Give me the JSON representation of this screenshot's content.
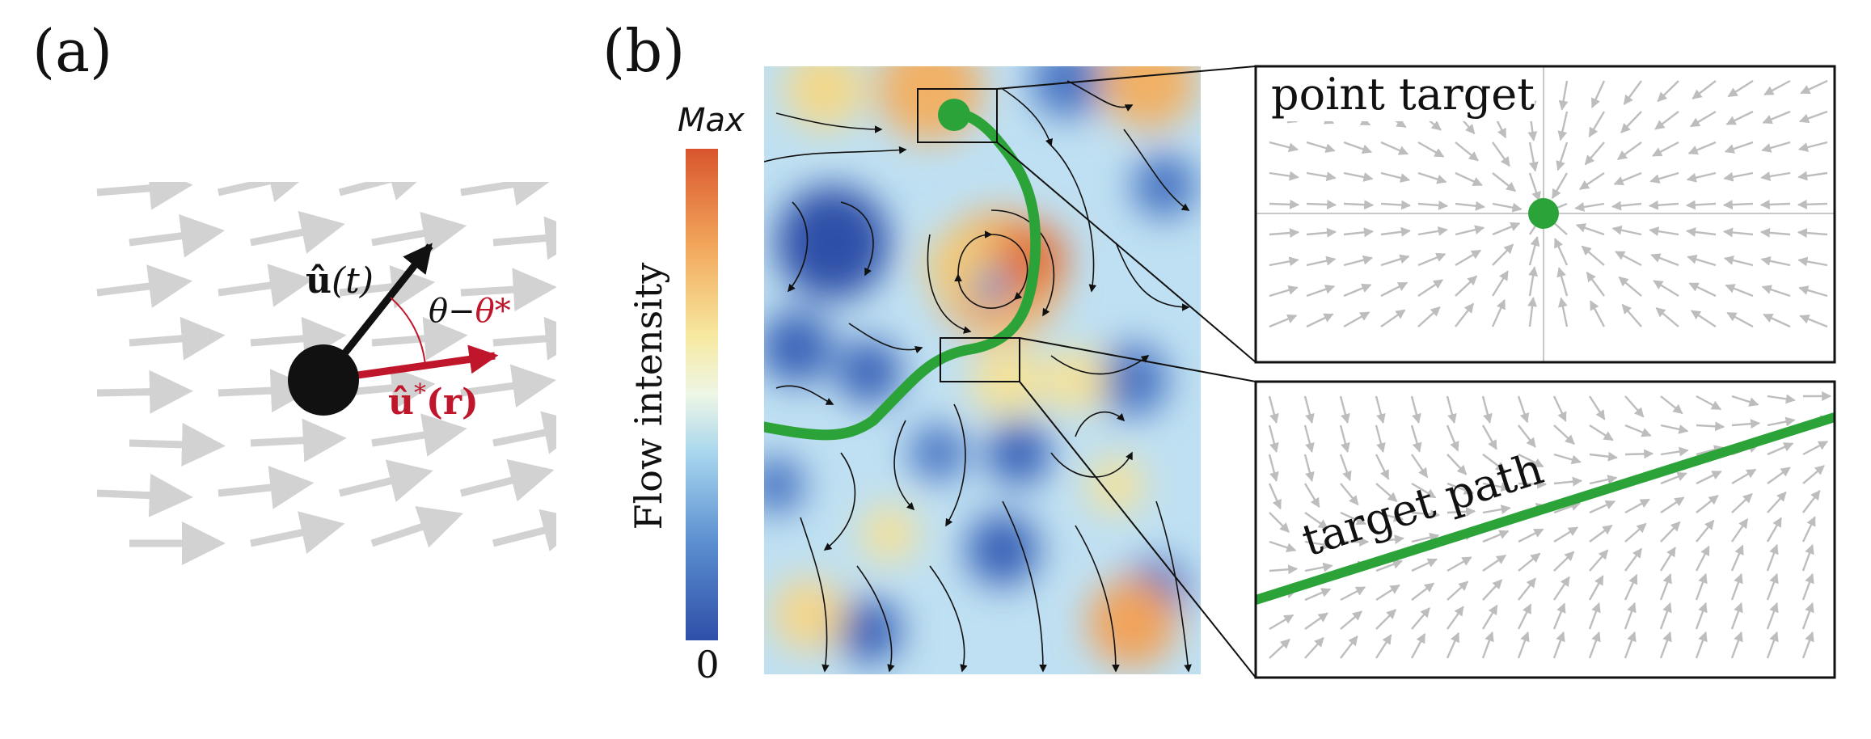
{
  "panel_a": {
    "label": "(a)",
    "u_label_base": "û",
    "u_label_arg": "(t)",
    "ustar_label_base": "û",
    "ustar_label_sup": "*",
    "ustar_label_arg": "(r)",
    "angle_label_theta": "θ−",
    "angle_label_thetastar": "θ*"
  },
  "panel_b": {
    "label": "(b)",
    "colorbar": {
      "title": "Flow intensity",
      "max_label": "Max",
      "min_label": "0"
    },
    "inset_top_label": "point target",
    "inset_bottom_label": "target path"
  },
  "colors": {
    "trajectory_green": "#2ca339",
    "ustar_red": "#c0162c",
    "arrow_gray": "#d2d2d2",
    "inset_arrow_gray": "#bdbdbd"
  }
}
